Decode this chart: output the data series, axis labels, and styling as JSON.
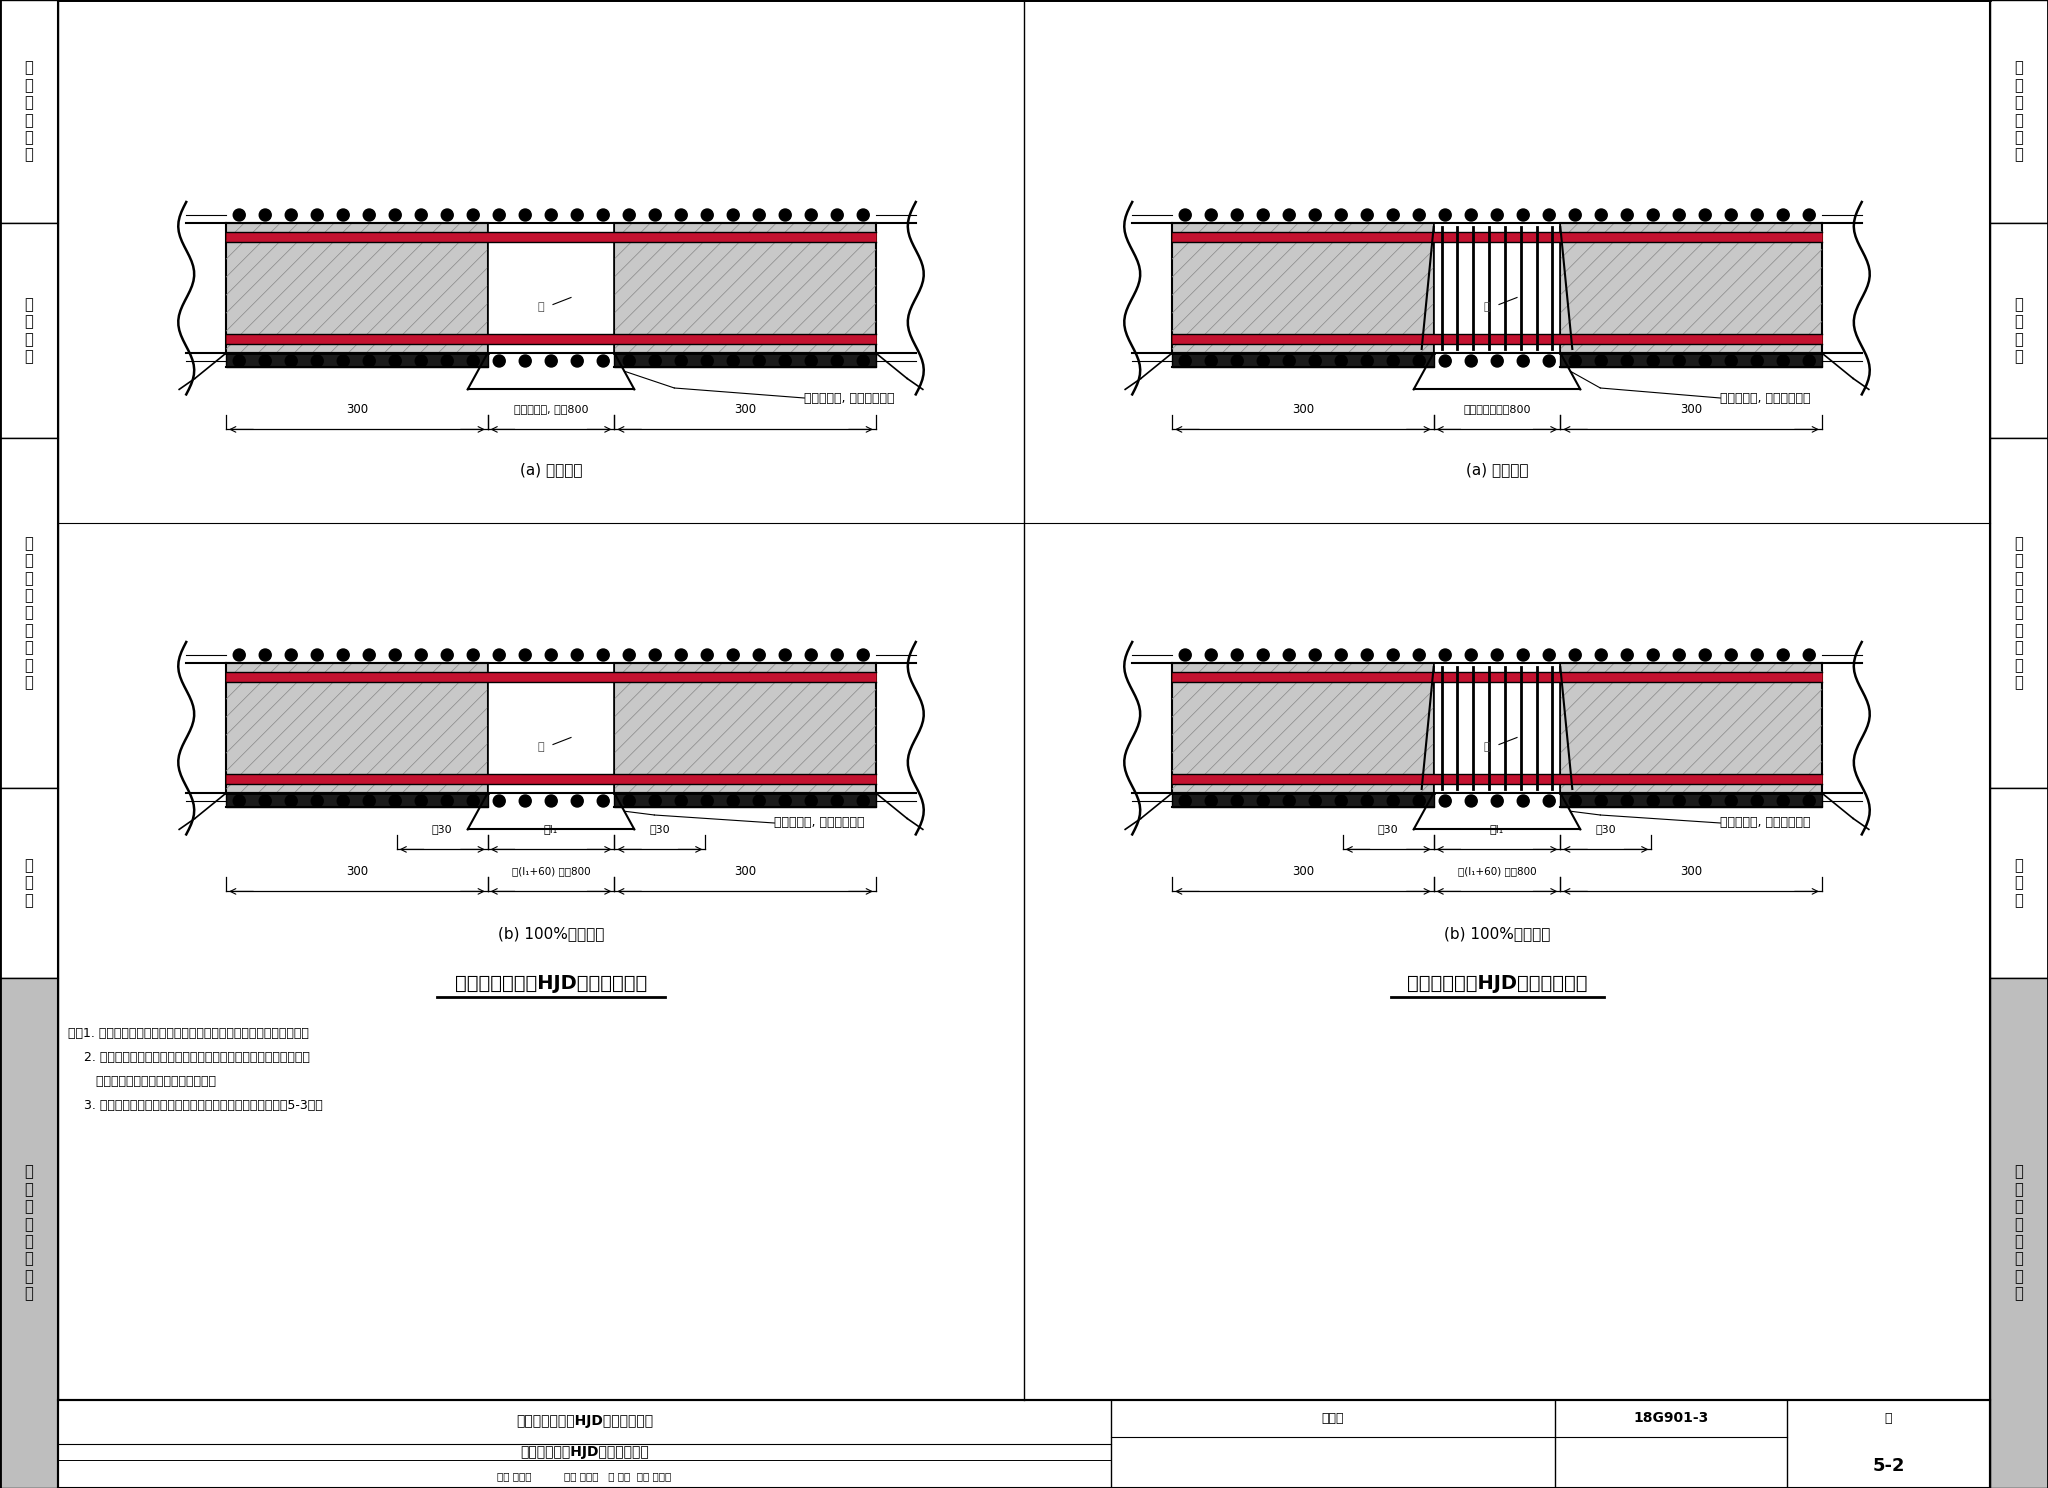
{
  "bg_color": "#FFFFFF",
  "red_color": "#C41230",
  "black_color": "#000000",
  "dark_gray": "#222222",
  "concrete_fill": "#C8C8C8",
  "black_fill": "#1A1A1A",
  "sidebar_gray": "#BEBEBE",
  "left_panel_title": "基础底板后浇带HJD钢筋排布构造",
  "right_panel_title": "基础梁后浇带HJD钢筋排布构造",
  "label_a": "(a) 贯通留筋",
  "label_b": "(b) 100%搭接留筋",
  "annotation_wf": "附加防水层, 垫层相应下落",
  "dim_300": "300",
  "dim_800_L": "按设计标注, 且＞800",
  "dim_800_R": "按设计标注且＞800",
  "dim_30": "＞30",
  "dim_l1": "＞l₁",
  "dim_l1_60": "＞(l₁+60) 且＞800",
  "footer_title1": "基础底板后浇带HJD钢筋排布构造",
  "footer_title2": "基础梁后浇带HJD钢筋排布构造",
  "footer_atlas_label": "图集号",
  "footer_atlas_num": "18G901-3",
  "footer_page_label": "页",
  "footer_page_num": "5-2",
  "sig_row": "审核 黄志刚          校对 刘晨曦   分 吴咏  设计 王怀元",
  "sidebar_sections_top": [
    1488,
    1265,
    1050,
    700,
    510,
    0
  ],
  "sidebar_labels": [
    "一\n般\n构\n造\n要\n求",
    "独\n立\n基\n础",
    "条\n形\n基\n础\n与\n筏\n形\n基\n础",
    "桩\n基\n础",
    "与\n基\n础\n有\n关\n的\n构\n造"
  ],
  "notes": [
    "注：1. 后浇带混凝土的浇筑时间及其他要求应按具体工程的设计要求。",
    "    2. 后浇带两侧可采用钢筋支架单层钢丝网或单层钢板网隔断。当后",
    "       浇混凝土时，应将其表面浮浆剥除。",
    "    3. 后浇带下设抗水压垫层、后浇带超前止水构造见本图集第5-3页。"
  ]
}
